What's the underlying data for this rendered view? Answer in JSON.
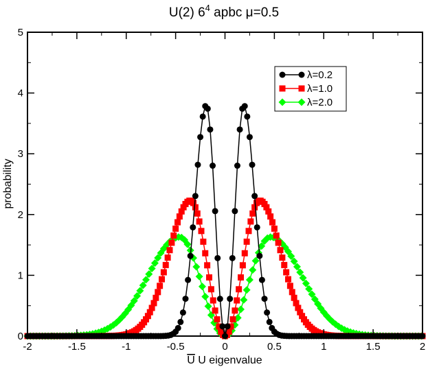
{
  "chart_data": {
    "type": "line",
    "title": "U(2)  6",
    "title_sup": "4",
    "title_rest": " apbc μ=0.5",
    "xlabel_over": "U",
    "xlabel_rest": " U eigenvalue",
    "ylabel": "probability",
    "xlim": [
      -2,
      2
    ],
    "ylim": [
      0,
      5
    ],
    "x_ticks": [
      "-2",
      "-1.5",
      "-1",
      "-0.5",
      "0",
      "0.5",
      "1",
      "1.5",
      "2"
    ],
    "y_ticks": [
      "0",
      "1",
      "2",
      "3",
      "4",
      "5"
    ],
    "legend_position": "top-right",
    "grid": false,
    "series": [
      {
        "name": "λ=0.2",
        "color": "#000000",
        "marker": "circle",
        "peak_x": 0.19,
        "peak_y": 3.8,
        "half_width_inner": 0.075,
        "half_width_outer": 0.11,
        "x_step": 0.025
      },
      {
        "name": "λ=1.0",
        "color": "#ff0000",
        "marker": "square",
        "peak_x": 0.35,
        "peak_y": 2.23,
        "half_width_inner": 0.15,
        "half_width_outer": 0.22,
        "x_step": 0.02
      },
      {
        "name": "λ=2.0",
        "color": "#00ff00",
        "marker": "diamond",
        "peak_x": 0.46,
        "peak_y": 1.63,
        "half_width_inner": 0.21,
        "half_width_outer": 0.32,
        "x_step": 0.03
      }
    ]
  }
}
